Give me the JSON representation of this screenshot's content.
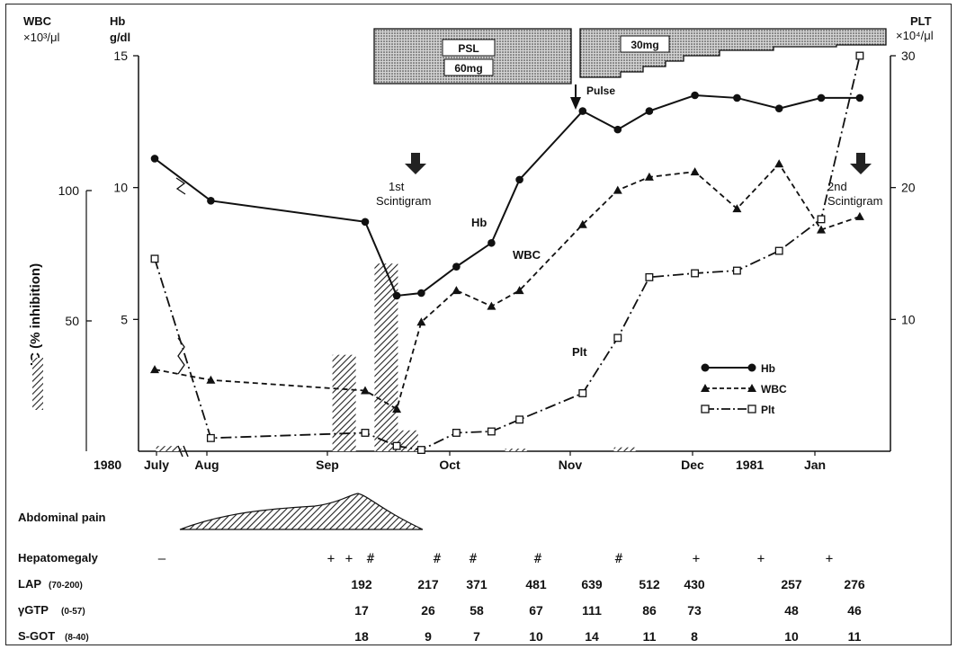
{
  "chart_data": {
    "type": "line",
    "axes": {
      "wbc_unit_1": "WBC",
      "wbc_unit_2": "×10³/μl",
      "hb_unit_1": "Hb",
      "hb_unit_2": "g/dl",
      "plt_unit_1": "PLT",
      "plt_unit_2": "×10⁴/μl",
      "ic_label": "IC (% inhibition)",
      "hb_ticks": [
        "15",
        "10",
        "5"
      ],
      "ic_ticks": [
        "100",
        "50"
      ],
      "plt_ticks": [
        "30",
        "20",
        "10"
      ],
      "hb_range": [
        0,
        15
      ],
      "plt_range": [
        0,
        30
      ],
      "ic_range": [
        0,
        100
      ]
    },
    "x_axis": {
      "year_1980": "1980",
      "year_1981": "1981",
      "months": [
        "July",
        "Aug",
        "Sep",
        "Oct",
        "Nov",
        "Dec",
        "Jan"
      ],
      "unit": "days since 1980-07-01",
      "month_positions": [
        0,
        31,
        62,
        92,
        123,
        153,
        184
      ]
    },
    "treatment": {
      "psl_label": "PSL",
      "dose1": "60mg",
      "dose2": "30mg",
      "pulse_label": "Pulse"
    },
    "annotations": {
      "scint1_l1": "1st",
      "scint1_l2": "Scintigram",
      "scint2_l1": "2nd",
      "scint2_l2": "Scintigram",
      "hb_label": "Hb",
      "wbc_label": "WBC",
      "plt_label": "Plt"
    },
    "legend": {
      "position": "right",
      "items": [
        "Hb",
        "WBC",
        "Plt"
      ]
    },
    "series": [
      {
        "name": "Hb",
        "axis": "Hb g/dl",
        "style": "solid-circle",
        "points": [
          [
            0,
            11.1
          ],
          [
            16,
            9.5
          ],
          [
            60,
            8.7
          ],
          [
            69,
            5.9
          ],
          [
            76,
            6.0
          ],
          [
            86,
            7.0
          ],
          [
            96,
            7.9
          ],
          [
            104,
            10.3
          ],
          [
            122,
            12.9
          ],
          [
            132,
            12.2
          ],
          [
            141,
            12.9
          ],
          [
            154,
            13.5
          ],
          [
            166,
            13.4
          ],
          [
            178,
            13.0
          ],
          [
            190,
            13.4
          ],
          [
            201,
            13.4
          ]
        ]
      },
      {
        "name": "WBC",
        "axis": "Hb g/dl",
        "style": "dashed-triangle",
        "points": [
          [
            0,
            3.1
          ],
          [
            16,
            2.7
          ],
          [
            60,
            2.3
          ],
          [
            69,
            1.6
          ],
          [
            76,
            4.9
          ],
          [
            86,
            6.1
          ],
          [
            96,
            5.5
          ],
          [
            104,
            6.1
          ],
          [
            122,
            8.6
          ],
          [
            132,
            9.9
          ],
          [
            141,
            10.4
          ],
          [
            154,
            10.6
          ],
          [
            166,
            9.2
          ],
          [
            178,
            10.9
          ],
          [
            190,
            8.4
          ],
          [
            201,
            8.9
          ]
        ]
      },
      {
        "name": "Plt",
        "axis": "PLT ×10⁴/μl",
        "style": "dashdot-square",
        "points": [
          [
            0,
            14.6
          ],
          [
            16,
            1.0
          ],
          [
            60,
            1.4
          ],
          [
            69,
            0.4
          ],
          [
            76,
            0.1
          ],
          [
            86,
            1.4
          ],
          [
            96,
            1.5
          ],
          [
            104,
            2.4
          ],
          [
            122,
            4.4
          ],
          [
            132,
            8.6
          ],
          [
            141,
            13.2
          ],
          [
            154,
            13.5
          ],
          [
            166,
            13.7
          ],
          [
            178,
            15.2
          ],
          [
            190,
            17.6
          ],
          [
            201,
            30.0
          ]
        ]
      }
    ],
    "ic_bars": [
      {
        "x": 54,
        "value": 37
      },
      {
        "x": 66,
        "value": 72
      },
      {
        "x": 72,
        "value": 8
      },
      {
        "x": 4,
        "value": 2
      },
      {
        "x": 103,
        "value": 1
      },
      {
        "x": 134,
        "value": 1.5
      }
    ],
    "ic_legend_swatch": "hatched-bar",
    "clinical": {
      "abdominal_pain_label": "Abdominal pain",
      "hepatomegaly_label": "Hepatomegaly",
      "hepatomegaly": [
        "—",
        "+",
        "+",
        "#",
        "#",
        "#",
        "#",
        "#",
        "+",
        "+",
        "+"
      ],
      "lap_label": "LAP",
      "lap_range": "(70-200)",
      "lap_values": [
        "192",
        "217",
        "371",
        "481",
        "639",
        "512",
        "430",
        "257",
        "276"
      ],
      "gtp_label": "γGTP",
      "gtp_range": "(0-57)",
      "gtp_values": [
        "17",
        "26",
        "58",
        "67",
        "111",
        "86",
        "73",
        "48",
        "46"
      ],
      "sgot_label": "S-GOT",
      "sgot_range": "(8-40)",
      "sgot_values": [
        "18",
        "9",
        "7",
        "10",
        "14",
        "11",
        "8",
        "10",
        "11"
      ]
    }
  }
}
